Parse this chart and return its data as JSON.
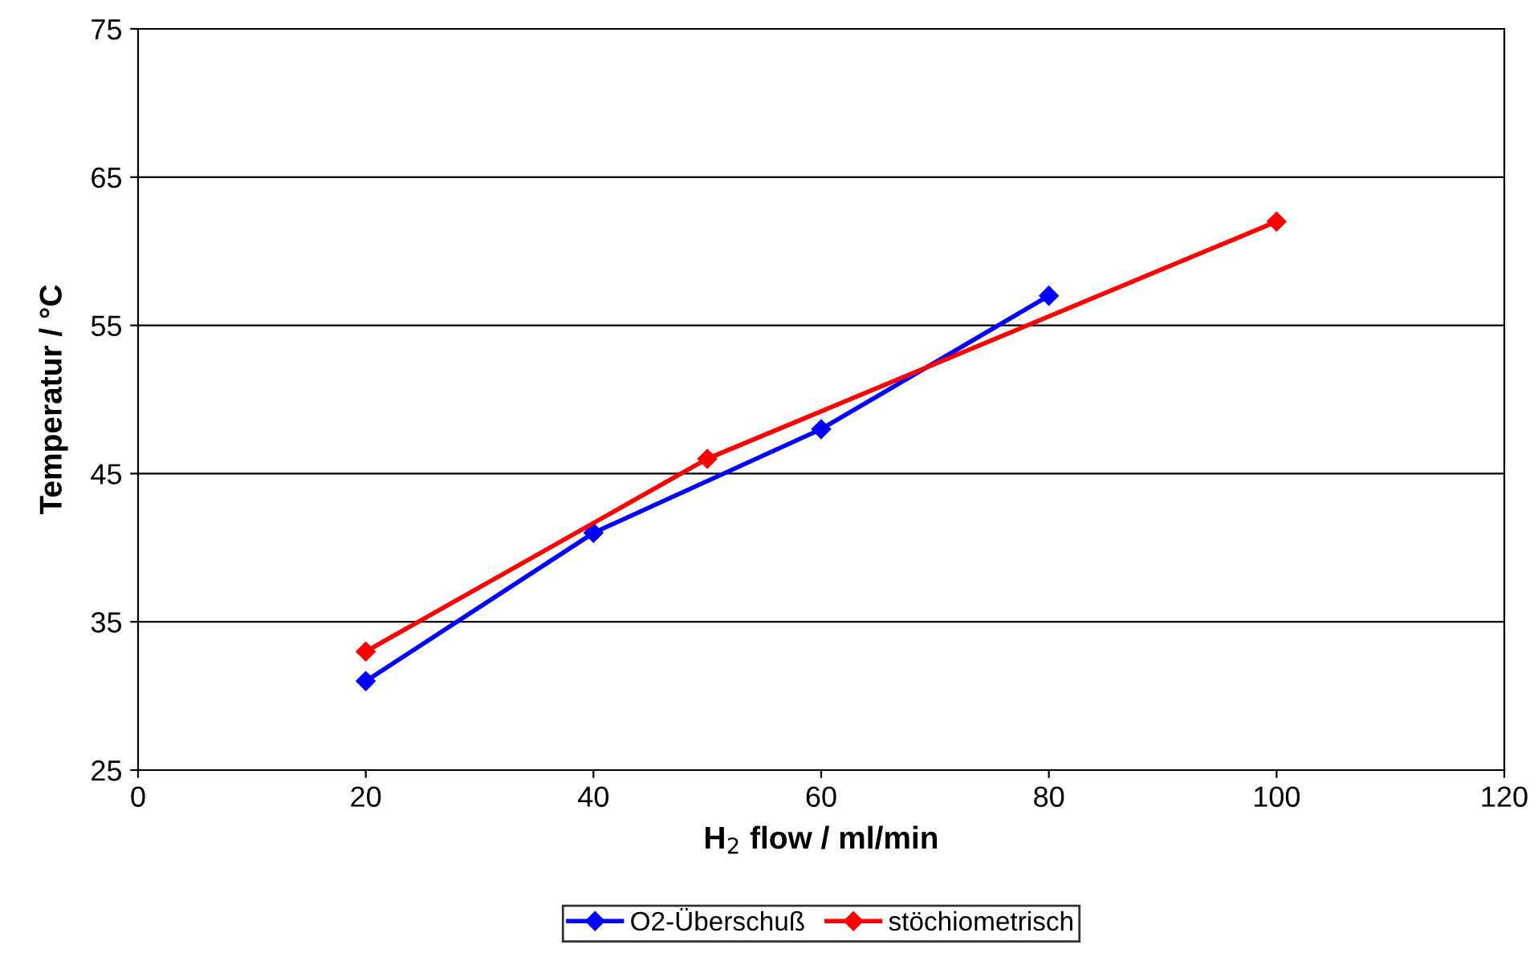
{
  "chart_data": {
    "type": "line",
    "xlabel": "H$_{2}$ flow / ml/min",
    "ylabel": "Temperatur / °C",
    "series": [
      {
        "name": "O2-Überschuß",
        "color": "#0000ff",
        "x": [
          20,
          40,
          60,
          80
        ],
        "values": [
          31,
          41,
          48,
          57
        ]
      },
      {
        "name": "stöchiometrisch",
        "color": "#ff0000",
        "x": [
          20,
          50,
          100
        ],
        "values": [
          33,
          46,
          62
        ]
      }
    ],
    "xlim": [
      0,
      120
    ],
    "xticks": [
      0,
      20,
      40,
      60,
      80,
      100,
      120
    ],
    "ylim": [
      25,
      75
    ],
    "yticks": [
      25,
      35,
      45,
      55,
      65,
      75
    ],
    "grid": "y",
    "legend": "bottom",
    "marker": "diamond",
    "line_style": "solid"
  }
}
